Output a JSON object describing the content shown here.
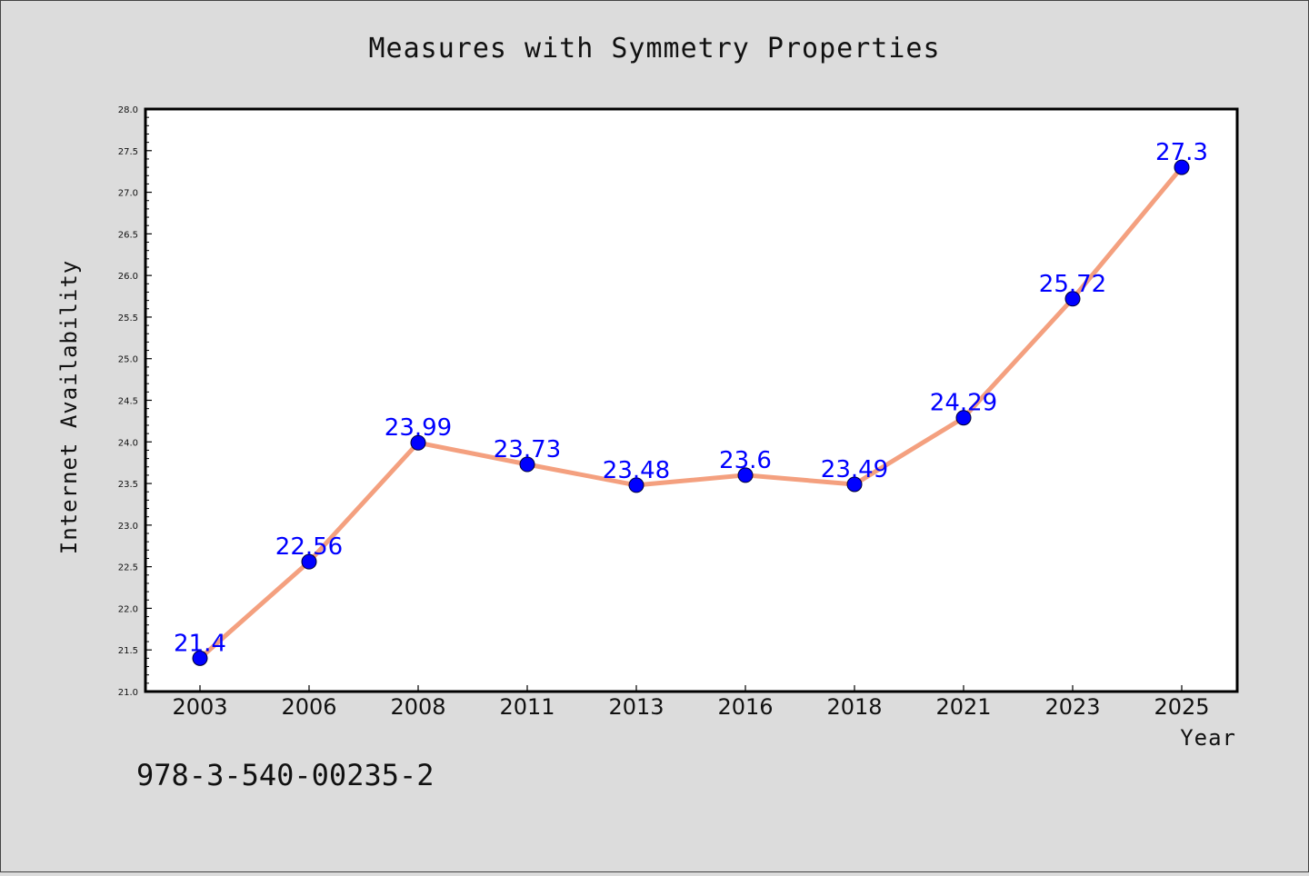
{
  "chart_data": {
    "type": "line",
    "title": "Measures with Symmetry Properties",
    "xlabel": "Year",
    "ylabel": "Internet Availability",
    "categories": [
      "2003",
      "2006",
      "2008",
      "2011",
      "2013",
      "2016",
      "2018",
      "2021",
      "2023",
      "2025"
    ],
    "series": [
      {
        "values": [
          21.4,
          22.56,
          23.99,
          23.73,
          23.48,
          23.6,
          23.49,
          24.29,
          25.72,
          27.3
        ],
        "line_color": "#f4a07f",
        "marker_color": "#0000ff"
      }
    ],
    "data_labels": [
      "21.4",
      "22.56",
      "23.99",
      "23.73",
      "23.48",
      "23.6",
      "23.49",
      "24.29",
      "25.72",
      "27.3"
    ],
    "ylim": [
      21.0,
      28.0
    ],
    "yticks": [
      "21.0",
      "21.5",
      "22.0",
      "22.5",
      "23.0",
      "23.5",
      "24.0",
      "24.5",
      "25.0",
      "25.5",
      "26.0",
      "26.5",
      "27.0",
      "27.5",
      "28.0"
    ],
    "grid": false,
    "annotation": "978-3-540-00235-2",
    "colors": {
      "background": "#dcdcdc",
      "plot_background": "#ffffff",
      "axes": "#000000"
    }
  }
}
